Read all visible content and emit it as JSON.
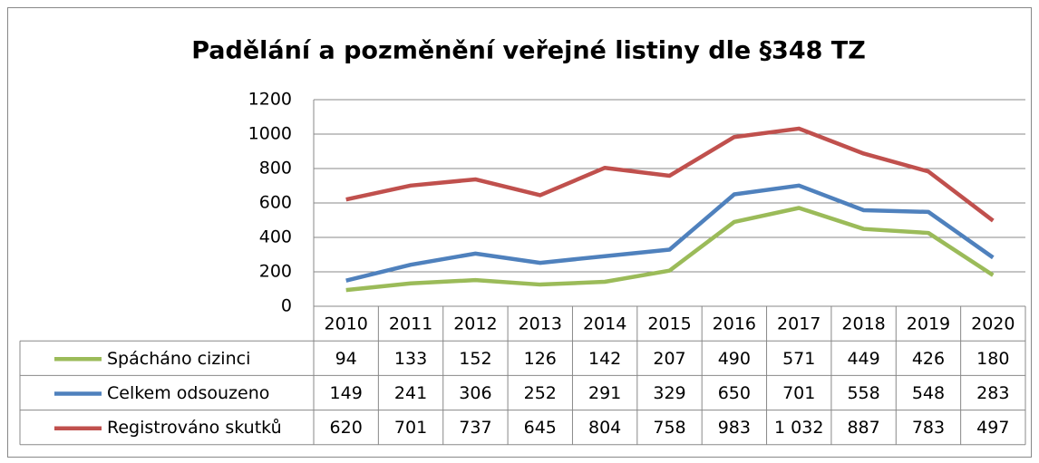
{
  "chart_data": {
    "type": "line",
    "title": "Padělání a pozměnění veřejné listiny dle §348 TZ",
    "categories": [
      "2010",
      "2011",
      "2012",
      "2013",
      "2014",
      "2015",
      "2016",
      "2017",
      "2018",
      "2019",
      "2020"
    ],
    "series": [
      {
        "name": "Spácháno cizinci",
        "color": "#9bbb59",
        "values": [
          94,
          133,
          152,
          126,
          142,
          207,
          490,
          571,
          449,
          426,
          180
        ]
      },
      {
        "name": "Celkem odsouzeno",
        "color": "#4f81bd",
        "values": [
          149,
          241,
          306,
          252,
          291,
          329,
          650,
          701,
          558,
          548,
          283
        ]
      },
      {
        "name": "Registrováno skutků",
        "color": "#c0504d",
        "values": [
          620,
          701,
          737,
          645,
          804,
          758,
          983,
          1032,
          887,
          783,
          497
        ],
        "value_labels": [
          "620",
          "701",
          "737",
          "645",
          "804",
          "758",
          "983",
          "1 032",
          "887",
          "783",
          "497"
        ]
      }
    ],
    "ylim": [
      0,
      1200
    ],
    "yticks": [
      0,
      200,
      400,
      600,
      800,
      1000,
      1200
    ],
    "grid": true
  }
}
